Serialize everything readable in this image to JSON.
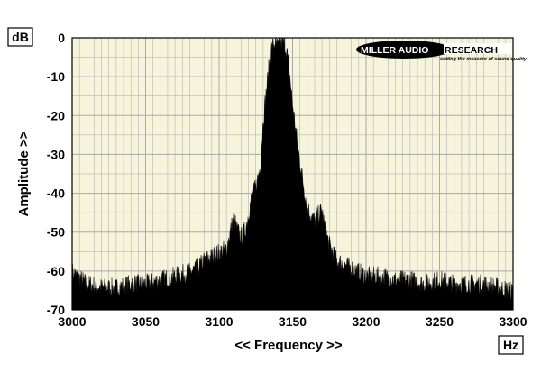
{
  "chart_data": {
    "type": "area",
    "y_unit": "dB",
    "x_unit": "Hz",
    "xlabel": "<< Frequency >>",
    "ylabel": "Amplitude >>",
    "xlim": [
      3000,
      3300
    ],
    "ylim": [
      -70,
      0
    ],
    "x_ticks": [
      3000,
      3050,
      3100,
      3150,
      3200,
      3250,
      3300
    ],
    "y_ticks": [
      0,
      -10,
      -20,
      -30,
      -40,
      -50,
      -60,
      -70
    ],
    "grid": true,
    "colors": {
      "plot_background": "#f7f4dc",
      "grid": "#a8a8a8",
      "fill": "#000000"
    },
    "series": [
      {
        "x": [
          3000,
          3010,
          3020,
          3030,
          3040,
          3050,
          3060,
          3070,
          3080,
          3085,
          3090,
          3095,
          3100,
          3105,
          3108,
          3110,
          3112,
          3115,
          3118,
          3120,
          3122,
          3125,
          3128,
          3130,
          3132,
          3134,
          3136,
          3138,
          3140,
          3142,
          3144,
          3146,
          3148,
          3150,
          3152,
          3154,
          3156,
          3158,
          3160,
          3162,
          3165,
          3168,
          3170,
          3172,
          3175,
          3180,
          3185,
          3190,
          3200,
          3210,
          3220,
          3230,
          3240,
          3250,
          3260,
          3270,
          3280,
          3290,
          3300
        ],
        "values": [
          -61,
          -64,
          -65,
          -65,
          -64,
          -64,
          -63,
          -62,
          -61,
          -60,
          -58,
          -57,
          -56,
          -55,
          -50,
          -47,
          -50,
          -52,
          -50,
          -46,
          -42,
          -39,
          -34,
          -22,
          -15,
          -8,
          -3,
          -2,
          -3,
          -2,
          -2,
          -4,
          -10,
          -18,
          -24,
          -30,
          -35,
          -40,
          -44,
          -46,
          -48,
          -46,
          -45,
          -50,
          -54,
          -58,
          -59,
          -60,
          -62,
          -62,
          -63,
          -63,
          -64,
          -63,
          -64,
          -64,
          -64,
          -65,
          -66
        ]
      }
    ]
  },
  "logo": {
    "brand": "MILLER AUDIO RESEARCH",
    "tagline": "setting the measure of sound quality"
  }
}
